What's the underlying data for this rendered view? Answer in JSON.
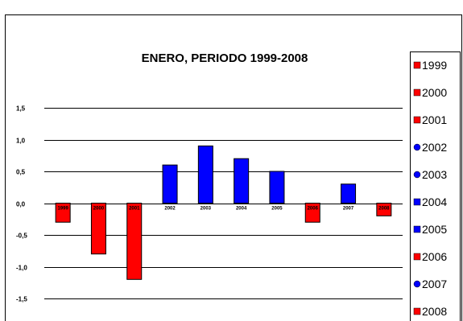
{
  "chart_data": {
    "type": "bar",
    "title": "ENERO, PERIODO 1999-2008",
    "xlabel": "",
    "ylabel": "",
    "ylim": [
      -1.5,
      1.5
    ],
    "yticks": [
      1.5,
      1.0,
      0.5,
      0.0,
      -0.5,
      -1.0,
      -1.5
    ],
    "ytick_labels": [
      "1,5",
      "1,0",
      "0,5",
      "0,0",
      "-0,5",
      "-1,0",
      "-1,5"
    ],
    "grid": true,
    "legend_position": "right",
    "colors": {
      "negative": "#ff0000",
      "positive": "#0000ff"
    },
    "categories": [
      "1999",
      "2000",
      "2001",
      "2002",
      "2003",
      "2004",
      "2005",
      "2006",
      "2007",
      "2008"
    ],
    "values": [
      -0.3,
      -0.8,
      -1.2,
      0.6,
      0.9,
      0.7,
      0.5,
      -0.3,
      0.3,
      -0.2
    ],
    "bar_colors": [
      "#ff0000",
      "#ff0000",
      "#ff0000",
      "#0000ff",
      "#0000ff",
      "#0000ff",
      "#0000ff",
      "#ff0000",
      "#0000ff",
      "#ff0000"
    ],
    "legend": [
      {
        "label": "1999",
        "color": "#ff0000"
      },
      {
        "label": "2000",
        "color": "#ff0000"
      },
      {
        "label": "2001",
        "color": "#ff0000"
      },
      {
        "label": "2002",
        "color": "#0000ff"
      },
      {
        "label": "2003",
        "color": "#0000ff"
      },
      {
        "label": "2004",
        "color": "#0000ff"
      },
      {
        "label": "2005",
        "color": "#0000ff"
      },
      {
        "label": "2006",
        "color": "#ff0000"
      },
      {
        "label": "2007",
        "color": "#0000ff"
      },
      {
        "label": "2008",
        "color": "#ff0000"
      }
    ]
  }
}
